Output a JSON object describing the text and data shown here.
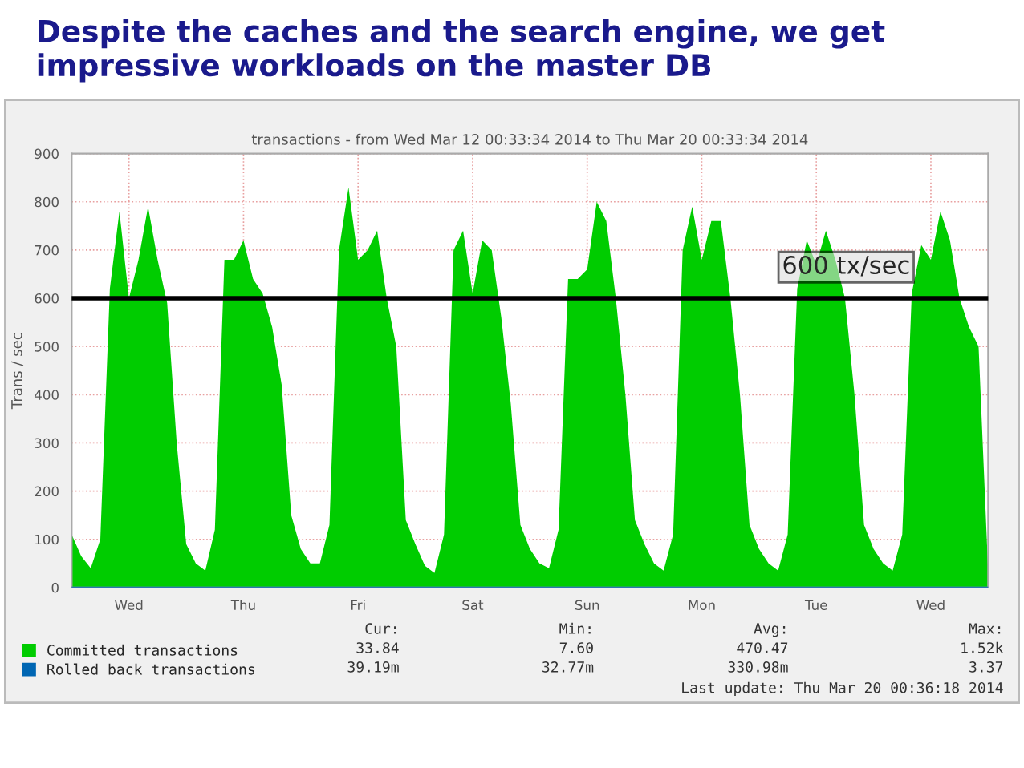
{
  "chart_data": {
    "type": "area",
    "title": "Despite the caches and the search engine, we get impressive workloads on the master DB",
    "subtitle": "transactions - from Wed Mar 12 00:33:34 2014 to Thu Mar 20 00:33:34 2014",
    "ylabel": "Trans / sec",
    "categories": [
      null,
      null,
      null,
      null,
      null,
      null,
      "Wed",
      null,
      null,
      null,
      null,
      null,
      null,
      null,
      null,
      null,
      null,
      null,
      "Thu",
      null,
      null,
      null,
      null,
      null,
      null,
      null,
      null,
      null,
      null,
      null,
      "Fri",
      null,
      null,
      null,
      null,
      null,
      null,
      null,
      null,
      null,
      null,
      null,
      "Sat",
      null,
      null,
      null,
      null,
      null,
      null,
      null,
      null,
      null,
      null,
      null,
      "Sun",
      null,
      null,
      null,
      null,
      null,
      null,
      null,
      null,
      null,
      null,
      null,
      "Mon",
      null,
      null,
      null,
      null,
      null,
      null,
      null,
      null,
      null,
      null,
      null,
      "Tue",
      null,
      null,
      null,
      null,
      null,
      null,
      null,
      null,
      null,
      null,
      null,
      "Wed",
      null,
      null,
      null,
      null,
      null,
      null
    ],
    "series": [
      {
        "name": "Committed transactions",
        "color": "#00cc00",
        "values": [
          110,
          65,
          40,
          100,
          620,
          780,
          600,
          680,
          790,
          680,
          590,
          300,
          90,
          50,
          35,
          120,
          680,
          680,
          720,
          640,
          610,
          540,
          420,
          150,
          80,
          50,
          50,
          130,
          700,
          830,
          680,
          700,
          740,
          600,
          500,
          140,
          90,
          45,
          30,
          110,
          700,
          740,
          610,
          720,
          700,
          560,
          380,
          130,
          80,
          50,
          40,
          120,
          640,
          640,
          660,
          800,
          760,
          600,
          400,
          140,
          90,
          50,
          35,
          110,
          700,
          790,
          680,
          760,
          760,
          600,
          400,
          130,
          80,
          50,
          35,
          110,
          620,
          720,
          670,
          740,
          680,
          600,
          400,
          130,
          80,
          50,
          35,
          110,
          610,
          710,
          680,
          780,
          720,
          600,
          540,
          500,
          34
        ]
      },
      {
        "name": "Rolled back transactions",
        "color": "#0066b3",
        "type": "line",
        "values": [
          0,
          0,
          0,
          0,
          0,
          0,
          0,
          0,
          0,
          0,
          0,
          0,
          0,
          0,
          0,
          0,
          0,
          0,
          0,
          0,
          0,
          0,
          0,
          0,
          0,
          0,
          0,
          0,
          0,
          0,
          0,
          0,
          0,
          0,
          0,
          0,
          0,
          0,
          0,
          0,
          0,
          0,
          0,
          0,
          0,
          0,
          0,
          0,
          0,
          0,
          0,
          0,
          0,
          0,
          0,
          0,
          0,
          0,
          0,
          0,
          0,
          0,
          0,
          0,
          0,
          0,
          0,
          0,
          0,
          0,
          0,
          0,
          0,
          0,
          0,
          0,
          0,
          0,
          0,
          0,
          0,
          0,
          0,
          0,
          0,
          0,
          0,
          0,
          0,
          0,
          0,
          0,
          0,
          0,
          0,
          0,
          0
        ]
      }
    ],
    "ylim": [
      0,
      900
    ],
    "yticks": [
      0,
      100,
      200,
      300,
      400,
      500,
      600,
      700,
      800,
      900
    ],
    "grid": true,
    "legend": "bottom left",
    "ref_lines": [
      {
        "axis": "y",
        "value": 600,
        "label": "600 tx/sec",
        "color": "#000000"
      }
    ],
    "annotations": [
      "Cur:",
      "Min:",
      "Avg:",
      "Max:",
      "33.84",
      "7.60",
      "470.47",
      "1.52k",
      "39.19m",
      "32.77m",
      "330.98m",
      "3.37",
      "Last update: Thu Mar 20 00:36:18 2014"
    ]
  }
}
